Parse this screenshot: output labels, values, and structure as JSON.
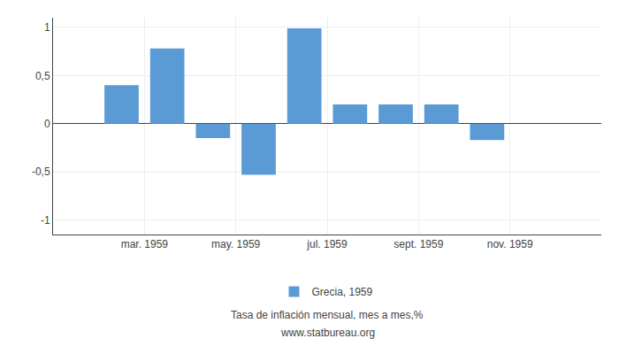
{
  "chart_data": {
    "type": "bar",
    "x": [
      1,
      2,
      3,
      4,
      5,
      6,
      7,
      8,
      9,
      10,
      11,
      12
    ],
    "series": [
      {
        "name": "Grecia, 1959",
        "color": "#5b9bd5",
        "values": [
          null,
          0.4,
          0.78,
          -0.15,
          -0.53,
          0.99,
          0.2,
          0.2,
          0.2,
          -0.17,
          null,
          null
        ]
      }
    ],
    "xlim": [
      0.5,
      12.5
    ],
    "xticks": [
      {
        "value": 2.5,
        "label": "mar. 1959"
      },
      {
        "value": 4.5,
        "label": "may. 1959"
      },
      {
        "value": 6.5,
        "label": "jul. 1959"
      },
      {
        "value": 8.5,
        "label": "sept. 1959"
      },
      {
        "value": 10.5,
        "label": "nov. 1959"
      }
    ],
    "ylim": [
      -1.15,
      1.1
    ],
    "yticks": [
      -1,
      {
        "value": -0.5,
        "label": "-0,5"
      },
      0,
      {
        "value": 0.5,
        "label": "0,5"
      },
      1
    ],
    "grid": true,
    "legend": "bottom",
    "annotations": [
      "Tasa de inflación mensual, mes a mes,%",
      "www.statbureau.org"
    ]
  }
}
